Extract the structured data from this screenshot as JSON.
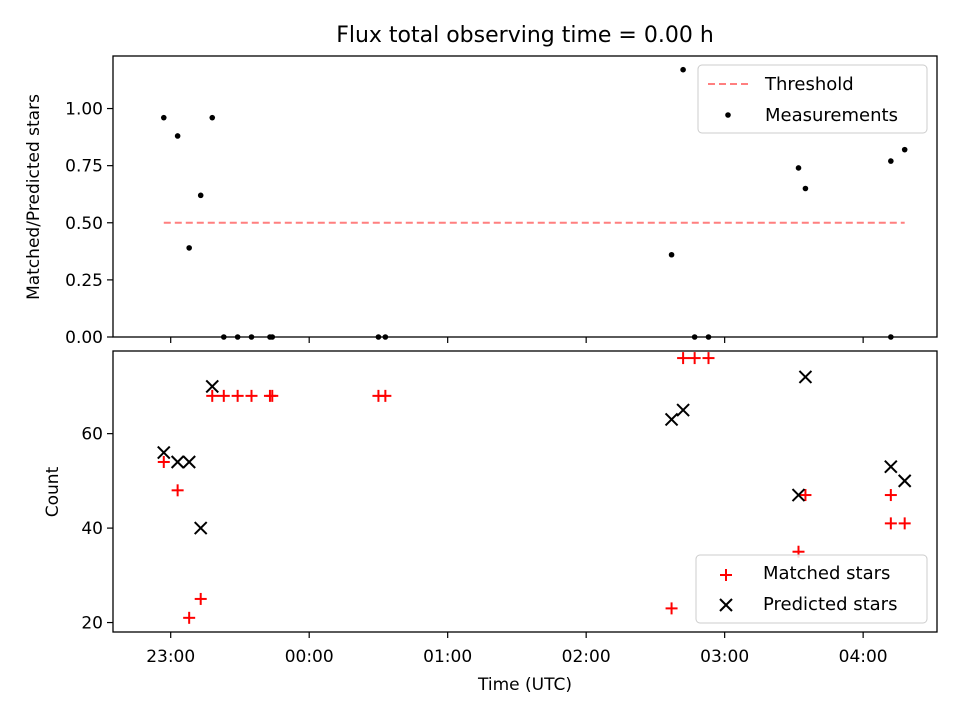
{
  "chart_data": [
    {
      "type": "scatter",
      "title": "Flux total observing time = 0.00 h",
      "xlabel": "",
      "ylabel": "Matched/Predicted stars",
      "ylim": [
        0,
        1.23
      ],
      "yticks": [
        "0.00",
        "0.25",
        "0.50",
        "0.75",
        "1.00"
      ],
      "x_axis": "time (UTC), shared with lower panel",
      "legend": {
        "position": "top-right",
        "entries": [
          "Threshold",
          "Measurements"
        ]
      },
      "threshold": {
        "name": "Threshold",
        "value": 0.5,
        "x_start": "22:57",
        "x_end": "04:18",
        "color": "#ff7f7f",
        "style": "dashed"
      },
      "series": [
        {
          "name": "Measurements",
          "color": "#000000",
          "marker": "dot",
          "points": [
            [
              "22:57",
              0.96
            ],
            [
              "23:03",
              0.88
            ],
            [
              "23:08",
              0.39
            ],
            [
              "23:13",
              0.62
            ],
            [
              "23:18",
              0.96
            ],
            [
              "23:23",
              0.0
            ],
            [
              "23:29",
              0.0
            ],
            [
              "23:35",
              0.0
            ],
            [
              "23:43",
              0.0
            ],
            [
              "23:44",
              0.0
            ],
            [
              "00:30",
              0.0
            ],
            [
              "00:33",
              0.0
            ],
            [
              "02:37",
              0.36
            ],
            [
              "02:42",
              1.17
            ],
            [
              "02:47",
              0.0
            ],
            [
              "02:53",
              0.0
            ],
            [
              "03:32",
              0.74
            ],
            [
              "03:35",
              0.65
            ],
            [
              "04:12",
              0.0
            ],
            [
              "04:12",
              0.77
            ],
            [
              "04:18",
              0.82
            ]
          ]
        }
      ]
    },
    {
      "type": "scatter",
      "title": "",
      "xlabel": "Time (UTC)",
      "ylabel": "Count",
      "ylim": [
        18,
        77.5
      ],
      "yticks": [
        "20",
        "40",
        "60"
      ],
      "xticks": [
        "23:00",
        "00:00",
        "01:00",
        "02:00",
        "03:00",
        "04:00"
      ],
      "xlim": [
        "22:35",
        "04:32"
      ],
      "legend": {
        "position": "bottom-right",
        "entries": [
          "Matched stars",
          "Predicted stars"
        ]
      },
      "series": [
        {
          "name": "Matched stars",
          "color": "#ff0000",
          "marker": "plus",
          "points": [
            [
              "22:57",
              54
            ],
            [
              "23:03",
              48
            ],
            [
              "23:08",
              21
            ],
            [
              "23:13",
              25
            ],
            [
              "23:18",
              68
            ],
            [
              "23:23",
              68
            ],
            [
              "23:29",
              68
            ],
            [
              "23:35",
              68
            ],
            [
              "23:43",
              68
            ],
            [
              "23:44",
              68
            ],
            [
              "00:30",
              68
            ],
            [
              "00:33",
              68
            ],
            [
              "02:37",
              23
            ],
            [
              "02:42",
              76
            ],
            [
              "02:47",
              76
            ],
            [
              "02:53",
              76
            ],
            [
              "03:32",
              35
            ],
            [
              "03:35",
              47
            ],
            [
              "04:12",
              47
            ],
            [
              "04:12",
              41
            ],
            [
              "04:18",
              41
            ]
          ]
        },
        {
          "name": "Predicted stars",
          "color": "#000000",
          "marker": "x",
          "points": [
            [
              "22:57",
              56
            ],
            [
              "23:03",
              54
            ],
            [
              "23:08",
              54
            ],
            [
              "23:13",
              40
            ],
            [
              "23:18",
              70
            ],
            [
              "02:37",
              63
            ],
            [
              "02:42",
              65
            ],
            [
              "03:32",
              47
            ],
            [
              "03:35",
              72
            ],
            [
              "04:12",
              53
            ],
            [
              "04:18",
              50
            ]
          ]
        }
      ]
    }
  ]
}
